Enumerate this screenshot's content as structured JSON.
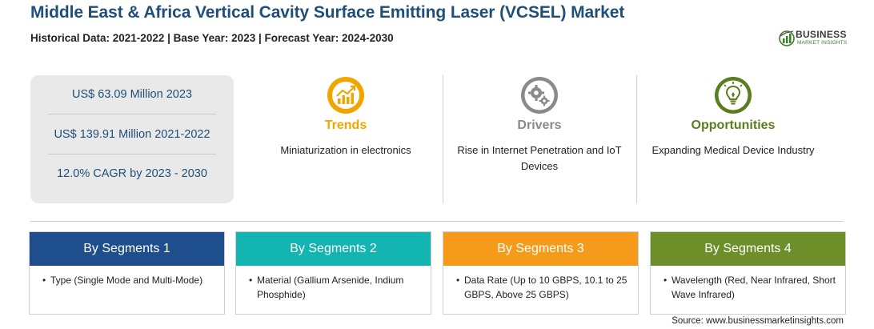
{
  "header": {
    "title": "Middle East & Africa Vertical Cavity Surface Emitting Laser (VCSEL) Market",
    "subtitle": "Historical Data: 2021-2022 | Base Year: 2023 | Forecast Year: 2024-2030"
  },
  "logo": {
    "word": "BUSINESS",
    "sub": "MARKET INSIGHTS"
  },
  "stats": [
    "US$ 63.09 Million 2023",
    "US$ 139.91 Million 2021-2022",
    "12.0% CAGR by 2023 - 2030"
  ],
  "columns": [
    {
      "label": "Trends",
      "text": "Miniaturization in electronics",
      "icon": "trend-chart-icon",
      "color": "#f0a500"
    },
    {
      "label": "Drivers",
      "text": "Rise in Internet Penetration and IoT Devices",
      "icon": "gears-icon",
      "color": "#8a8a8a"
    },
    {
      "label": "Opportunities",
      "text": "Expanding Medical Device Industry",
      "icon": "lightbulb-icon",
      "color": "#5a7d1e"
    }
  ],
  "segments": [
    {
      "title": "By Segments 1",
      "item": "Type (Single Mode and Multi-Mode)",
      "color": "#1f4e8c"
    },
    {
      "title": "By Segments 2",
      "item": "Material (Gallium Arsenide, Indium Phosphide)",
      "color": "#13b5b1"
    },
    {
      "title": "By Segments 3",
      "item": "Data Rate (Up to 10 GBPS, 10.1 to 25 GBPS, Above 25 GBPS)",
      "color": "#f59a1b"
    },
    {
      "title": "By Segments 4",
      "item": "Wavelength (Red, Near Infrared, Short Wave Infrared)",
      "color": "#6d8f2a"
    }
  ],
  "source": "Source: www.businessmarketinsights.com"
}
